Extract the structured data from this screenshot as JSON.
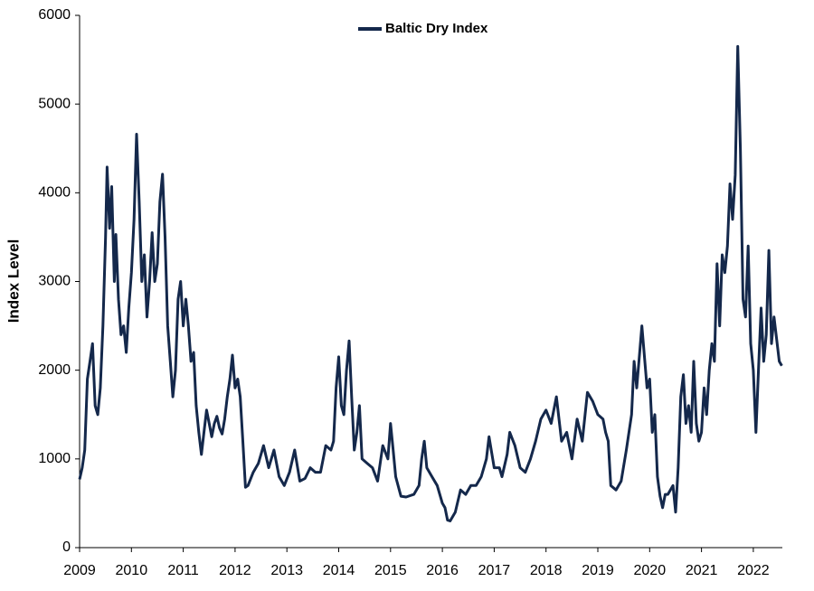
{
  "chart_data": {
    "type": "line",
    "y_label": "Index Level",
    "legend": "top",
    "x": [
      2009.0,
      2009.05,
      2009.1,
      2009.15,
      2009.2,
      2009.25,
      2009.3,
      2009.35,
      2009.4,
      2009.45,
      2009.5,
      2009.53,
      2009.58,
      2009.62,
      2009.67,
      2009.7,
      2009.75,
      2009.8,
      2009.85,
      2009.9,
      2009.95,
      2010.0,
      2010.05,
      2010.1,
      2010.15,
      2010.2,
      2010.25,
      2010.3,
      2010.35,
      2010.4,
      2010.45,
      2010.5,
      2010.55,
      2010.6,
      2010.65,
      2010.7,
      2010.75,
      2010.8,
      2010.85,
      2010.9,
      2010.95,
      2011.0,
      2011.05,
      2011.1,
      2011.15,
      2011.2,
      2011.25,
      2011.3,
      2011.35,
      2011.4,
      2011.45,
      2011.5,
      2011.55,
      2011.6,
      2011.65,
      2011.7,
      2011.75,
      2011.8,
      2011.85,
      2011.9,
      2011.95,
      2012.0,
      2012.05,
      2012.1,
      2012.15,
      2012.2,
      2012.25,
      2012.35,
      2012.45,
      2012.55,
      2012.65,
      2012.75,
      2012.85,
      2012.95,
      2013.05,
      2013.15,
      2013.25,
      2013.35,
      2013.45,
      2013.55,
      2013.65,
      2013.75,
      2013.85,
      2013.9,
      2013.95,
      2014.0,
      2014.05,
      2014.1,
      2014.15,
      2014.2,
      2014.25,
      2014.3,
      2014.35,
      2014.4,
      2014.45,
      2014.55,
      2014.65,
      2014.75,
      2014.85,
      2014.95,
      2015.0,
      2015.05,
      2015.1,
      2015.2,
      2015.3,
      2015.45,
      2015.55,
      2015.6,
      2015.65,
      2015.7,
      2015.8,
      2015.9,
      2016.0,
      2016.05,
      2016.1,
      2016.15,
      2016.25,
      2016.35,
      2016.45,
      2016.55,
      2016.65,
      2016.75,
      2016.85,
      2016.9,
      2017.0,
      2017.1,
      2017.15,
      2017.25,
      2017.3,
      2017.4,
      2017.5,
      2017.6,
      2017.7,
      2017.8,
      2017.9,
      2018.0,
      2018.1,
      2018.2,
      2018.3,
      2018.4,
      2018.5,
      2018.6,
      2018.7,
      2018.8,
      2018.9,
      2019.0,
      2019.1,
      2019.15,
      2019.2,
      2019.25,
      2019.35,
      2019.45,
      2019.55,
      2019.65,
      2019.7,
      2019.75,
      2019.85,
      2019.95,
      2020.0,
      2020.05,
      2020.1,
      2020.15,
      2020.2,
      2020.25,
      2020.3,
      2020.35,
      2020.45,
      2020.5,
      2020.55,
      2020.6,
      2020.65,
      2020.7,
      2020.75,
      2020.8,
      2020.85,
      2020.9,
      2020.95,
      2021.0,
      2021.05,
      2021.1,
      2021.15,
      2021.2,
      2021.25,
      2021.3,
      2021.35,
      2021.4,
      2021.45,
      2021.5,
      2021.55,
      2021.6,
      2021.65,
      2021.7,
      2021.75,
      2021.8,
      2021.85,
      2021.9,
      2021.95,
      2022.0,
      2022.05,
      2022.1,
      2022.15,
      2022.2,
      2022.25,
      2022.3,
      2022.35,
      2022.4,
      2022.5,
      2022.55
    ],
    "series": [
      {
        "name": "Baltic Dry Index",
        "color": "#14284b",
        "values": [
          770,
          900,
          1100,
          1900,
          2100,
          2300,
          1600,
          1500,
          1800,
          2500,
          3500,
          4290,
          3600,
          4070,
          3000,
          3530,
          2800,
          2400,
          2500,
          2200,
          2700,
          3100,
          3700,
          4660,
          3900,
          3000,
          3300,
          2600,
          3000,
          3550,
          3000,
          3200,
          3900,
          4210,
          3500,
          2500,
          2100,
          1700,
          2000,
          2800,
          3000,
          2500,
          2800,
          2500,
          2100,
          2200,
          1600,
          1300,
          1050,
          1300,
          1550,
          1400,
          1250,
          1400,
          1480,
          1350,
          1280,
          1450,
          1700,
          1900,
          2170,
          1800,
          1900,
          1700,
          1200,
          680,
          700,
          850,
          950,
          1150,
          900,
          1100,
          800,
          700,
          850,
          1100,
          750,
          780,
          900,
          850,
          850,
          1150,
          1100,
          1200,
          1800,
          2150,
          1600,
          1500,
          2000,
          2330,
          1700,
          1100,
          1300,
          1600,
          1000,
          950,
          900,
          750,
          1150,
          1000,
          1400,
          1100,
          800,
          580,
          570,
          600,
          700,
          1000,
          1200,
          900,
          800,
          700,
          500,
          450,
          310,
          300,
          400,
          650,
          600,
          700,
          700,
          800,
          1000,
          1250,
          900,
          900,
          800,
          1050,
          1300,
          1150,
          900,
          850,
          1000,
          1200,
          1450,
          1550,
          1400,
          1700,
          1200,
          1300,
          1000,
          1450,
          1200,
          1750,
          1650,
          1500,
          1450,
          1300,
          1200,
          700,
          650,
          750,
          1100,
          1500,
          2100,
          1800,
          2500,
          1800,
          1900,
          1300,
          1500,
          800,
          580,
          450,
          600,
          600,
          700,
          400,
          900,
          1700,
          1950,
          1400,
          1600,
          1300,
          2100,
          1400,
          1200,
          1300,
          1800,
          1500,
          2000,
          2300,
          2100,
          3200,
          2500,
          3300,
          3100,
          3400,
          4100,
          3700,
          4200,
          5650,
          4500,
          2800,
          2600,
          3400,
          2300,
          2000,
          1300,
          2000,
          2700,
          2100,
          2400,
          3350,
          2300,
          2600,
          2100,
          2050
        ]
      }
    ],
    "xlim": [
      2009,
      2022.56
    ],
    "xticks": [
      2009,
      2010,
      2011,
      2012,
      2013,
      2014,
      2015,
      2016,
      2017,
      2018,
      2019,
      2020,
      2021,
      2022
    ],
    "ylim": [
      0,
      6000
    ],
    "yticks": [
      0,
      1000,
      2000,
      3000,
      4000,
      5000,
      6000
    ]
  }
}
